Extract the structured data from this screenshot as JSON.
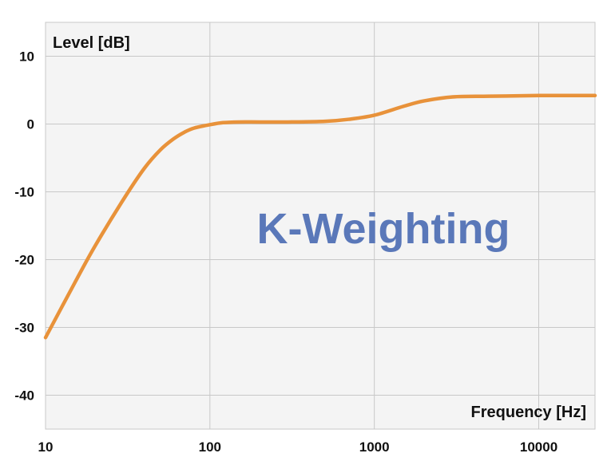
{
  "chart_data": {
    "type": "line",
    "title": "",
    "xlabel": "Frequency [Hz]",
    "ylabel": "Level [dB]",
    "annotation": "K-Weighting",
    "x_scale": "log",
    "xlim": [
      10,
      22000
    ],
    "ylim": [
      -45,
      15
    ],
    "x_ticks": [
      10,
      100,
      1000,
      10000
    ],
    "x_tick_labels": [
      "10",
      "100",
      "1000",
      "10000"
    ],
    "y_ticks": [
      10,
      0,
      -10,
      -20,
      -30,
      -40
    ],
    "y_tick_labels": [
      "10",
      "0",
      "-10",
      "-20",
      "-30",
      "-40"
    ],
    "grid": true,
    "series": [
      {
        "color": "#e8923a",
        "x": [
          10,
          15,
          20,
          30,
          40,
          50,
          60,
          70,
          80,
          100,
          120,
          150,
          200,
          300,
          500,
          700,
          1000,
          1500,
          2000,
          3000,
          5000,
          10000,
          22000
        ],
        "y": [
          -31.5,
          -23.5,
          -18,
          -11,
          -6.5,
          -3.8,
          -2.2,
          -1.2,
          -0.6,
          -0.1,
          0.2,
          0.3,
          0.3,
          0.3,
          0.4,
          0.7,
          1.3,
          2.6,
          3.4,
          4.0,
          4.1,
          4.2,
          4.2
        ]
      }
    ]
  },
  "colors": {
    "curve": "#e8923a",
    "annotation": "#5a78b9",
    "grid": "#c8c8c8",
    "plot_background": "#f4f4f4"
  }
}
